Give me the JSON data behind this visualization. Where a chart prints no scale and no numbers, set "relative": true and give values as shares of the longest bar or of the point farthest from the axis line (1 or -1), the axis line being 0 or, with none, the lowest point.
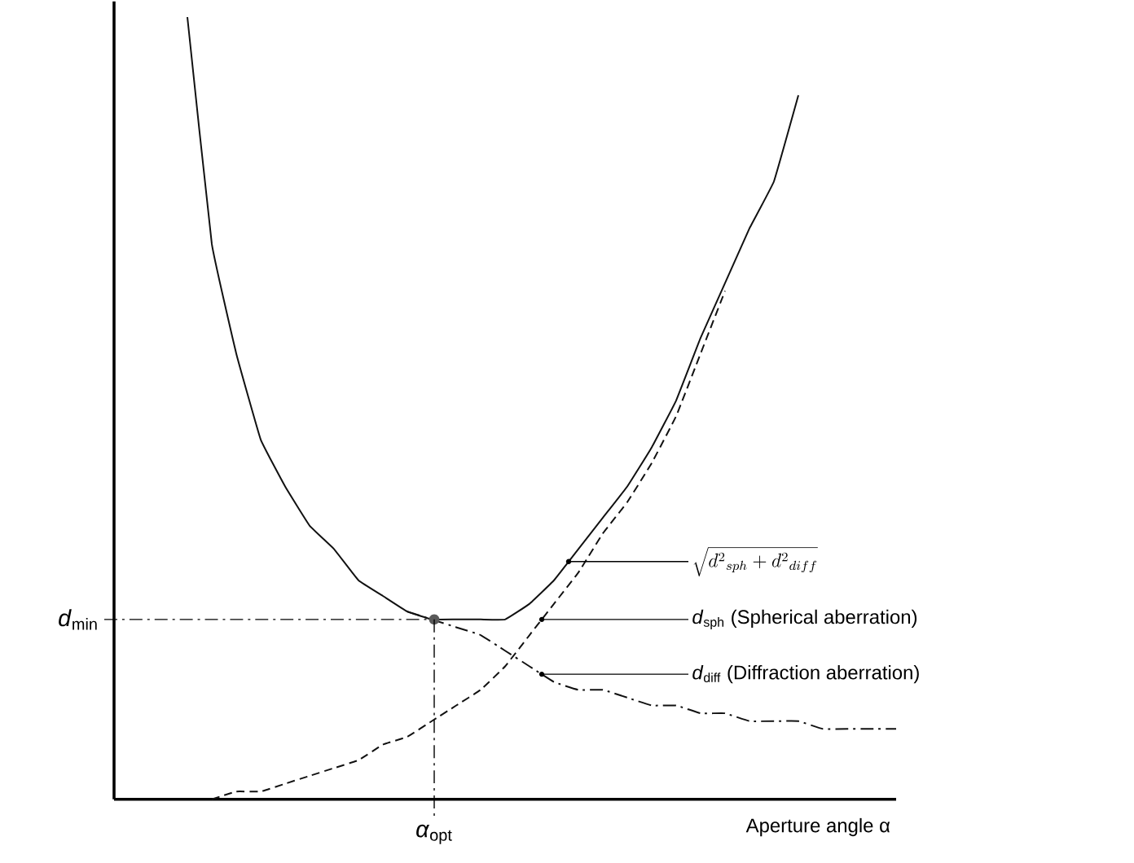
{
  "chart_data": {
    "type": "line",
    "relative": true,
    "xlabel": "Aperture angle α",
    "categories": [
      null,
      null,
      null,
      null,
      null,
      null,
      null,
      null,
      null,
      null,
      null,
      null,
      null,
      null,
      null,
      null,
      null,
      null,
      null,
      null,
      null,
      null,
      null,
      null,
      null,
      null,
      null,
      null,
      null,
      null,
      null,
      null,
      null
    ],
    "series": [
      {
        "color": "#111111",
        "line_style": "solid",
        "values": [
          null,
          null,
          null,
          1.0,
          0.71,
          0.57,
          0.46,
          0.4,
          0.35,
          0.32,
          0.28,
          0.26,
          0.24,
          0.23,
          0.23,
          0.23,
          0.23,
          0.25,
          0.28,
          0.32,
          0.36,
          0.4,
          0.45,
          0.51,
          0.59,
          0.66,
          0.73,
          0.79,
          0.9,
          null,
          null,
          null,
          null
        ]
      },
      {
        "color": "#111111",
        "line_style": "dashed",
        "values": [
          null,
          null,
          null,
          null,
          0.0,
          0.01,
          0.01,
          0.02,
          0.03,
          0.04,
          0.05,
          0.07,
          0.08,
          0.1,
          0.12,
          0.14,
          0.17,
          0.21,
          0.25,
          0.29,
          0.34,
          0.38,
          0.43,
          0.49,
          0.57,
          0.65,
          null,
          null,
          null,
          null,
          null,
          null,
          null
        ]
      },
      {
        "color": "#111111",
        "line_style": "dashdot",
        "values": [
          null,
          null,
          null,
          null,
          null,
          null,
          null,
          null,
          null,
          null,
          null,
          null,
          0.24,
          0.23,
          0.22,
          0.21,
          0.19,
          0.17,
          0.15,
          0.14,
          0.14,
          0.13,
          0.12,
          0.12,
          0.11,
          0.11,
          0.1,
          0.1,
          0.1,
          0.09,
          0.09,
          0.09,
          0.09
        ]
      }
    ],
    "ref_lines": [
      {
        "axis": "y",
        "value": 0.23,
        "label": "*d*$_{min}$",
        "line_style": "dashdot"
      }
    ],
    "annotations": [
      "\\sqrt{d^{2}{}_{sph}+d^{2}{}_{diff}}",
      "*d*$_{sph}$ (Spherical aberration)",
      "*d*$_{diff}$ (Diffraction aberration)",
      "*α*$_{opt}$"
    ]
  }
}
